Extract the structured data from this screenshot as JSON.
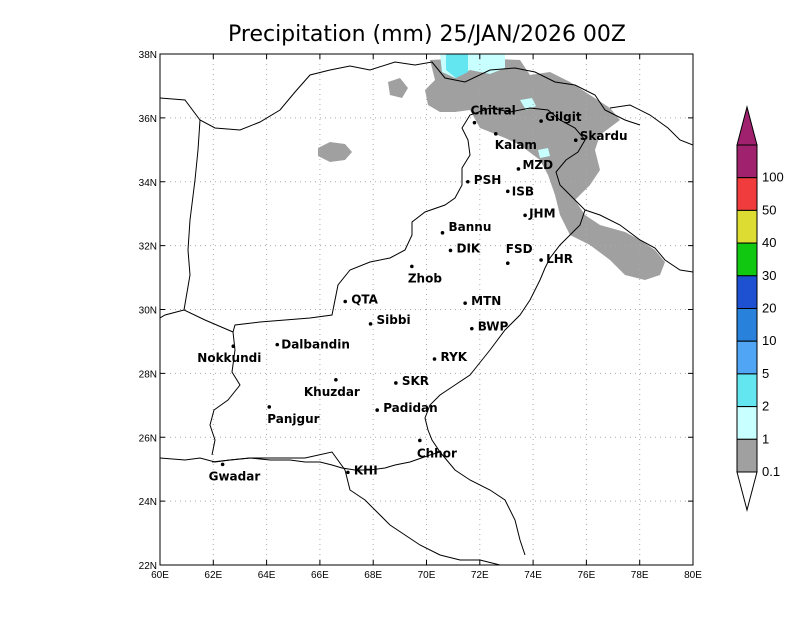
{
  "title": "Precipitation (mm) 25/JAN/2026 00Z",
  "axes": {
    "lon_min": 60,
    "lon_max": 80,
    "lat_min": 22,
    "lat_max": 38,
    "x_ticks": [
      {
        "lon": 60,
        "label": "60E"
      },
      {
        "lon": 62,
        "label": "62E"
      },
      {
        "lon": 64,
        "label": "64E"
      },
      {
        "lon": 66,
        "label": "66E"
      },
      {
        "lon": 68,
        "label": "68E"
      },
      {
        "lon": 70,
        "label": "70E"
      },
      {
        "lon": 72,
        "label": "72E"
      },
      {
        "lon": 74,
        "label": "74E"
      },
      {
        "lon": 76,
        "label": "76E"
      },
      {
        "lon": 78,
        "label": "78E"
      },
      {
        "lon": 80,
        "label": "80E"
      }
    ],
    "y_ticks": [
      {
        "lat": 22,
        "label": "22N"
      },
      {
        "lat": 24,
        "label": "24N"
      },
      {
        "lat": 26,
        "label": "26N"
      },
      {
        "lat": 28,
        "label": "28N"
      },
      {
        "lat": 30,
        "label": "30N"
      },
      {
        "lat": 32,
        "label": "32N"
      },
      {
        "lat": 34,
        "label": "34N"
      },
      {
        "lat": 36,
        "label": "36N"
      },
      {
        "lat": 38,
        "label": "38N"
      }
    ]
  },
  "colorbar": {
    "levels": [
      {
        "label": "0.1",
        "color": "#a0a0a0"
      },
      {
        "label": "1",
        "color": "#c8ffff"
      },
      {
        "label": "2",
        "color": "#64e6f0"
      },
      {
        "label": "5",
        "color": "#50a5f5"
      },
      {
        "label": "10",
        "color": "#2882dc"
      },
      {
        "label": "20",
        "color": "#1e50d2"
      },
      {
        "label": "30",
        "color": "#10c810"
      },
      {
        "label": "40",
        "color": "#dcdc32"
      },
      {
        "label": "50",
        "color": "#f03c3c"
      },
      {
        "label": "100",
        "color": "#a0226e"
      }
    ],
    "under_color": "#ffffff",
    "over_color": "#a0226e"
  },
  "cities": [
    {
      "name": "Chitral",
      "lon": 71.8,
      "lat": 35.85
    },
    {
      "name": "Gilgit",
      "lon": 74.3,
      "lat": 35.9
    },
    {
      "name": "Kalam",
      "lon": 72.6,
      "lat": 35.5
    },
    {
      "name": "Skardu",
      "lon": 75.6,
      "lat": 35.3
    },
    {
      "name": "MZD",
      "lon": 73.45,
      "lat": 34.4
    },
    {
      "name": "PSH",
      "lon": 71.55,
      "lat": 34.0
    },
    {
      "name": "ISB",
      "lon": 73.05,
      "lat": 33.7
    },
    {
      "name": "JHM",
      "lon": 73.7,
      "lat": 32.95
    },
    {
      "name": "Bannu",
      "lon": 70.6,
      "lat": 32.4
    },
    {
      "name": "DIK",
      "lon": 70.9,
      "lat": 31.85
    },
    {
      "name": "FSD",
      "lon": 73.05,
      "lat": 31.45
    },
    {
      "name": "LHR",
      "lon": 74.3,
      "lat": 31.55
    },
    {
      "name": "Zhob",
      "lon": 69.45,
      "lat": 31.35
    },
    {
      "name": "QTA",
      "lon": 66.95,
      "lat": 30.25
    },
    {
      "name": "MTN",
      "lon": 71.45,
      "lat": 30.2
    },
    {
      "name": "Sibbi",
      "lon": 67.9,
      "lat": 29.55
    },
    {
      "name": "BWP",
      "lon": 71.7,
      "lat": 29.4
    },
    {
      "name": "Nokkundi",
      "lon": 62.75,
      "lat": 28.85
    },
    {
      "name": "Dalbandin",
      "lon": 64.4,
      "lat": 28.9
    },
    {
      "name": "RYK",
      "lon": 70.3,
      "lat": 28.45
    },
    {
      "name": "Khuzdar",
      "lon": 66.6,
      "lat": 27.8
    },
    {
      "name": "SKR",
      "lon": 68.85,
      "lat": 27.7
    },
    {
      "name": "Panjgur",
      "lon": 64.1,
      "lat": 26.95
    },
    {
      "name": "Padidan",
      "lon": 68.15,
      "lat": 26.85
    },
    {
      "name": "Chhor",
      "lon": 69.75,
      "lat": 25.9
    },
    {
      "name": "Gwadar",
      "lon": 62.35,
      "lat": 25.15
    },
    {
      "name": "KHI",
      "lon": 67.05,
      "lat": 24.9
    }
  ]
}
